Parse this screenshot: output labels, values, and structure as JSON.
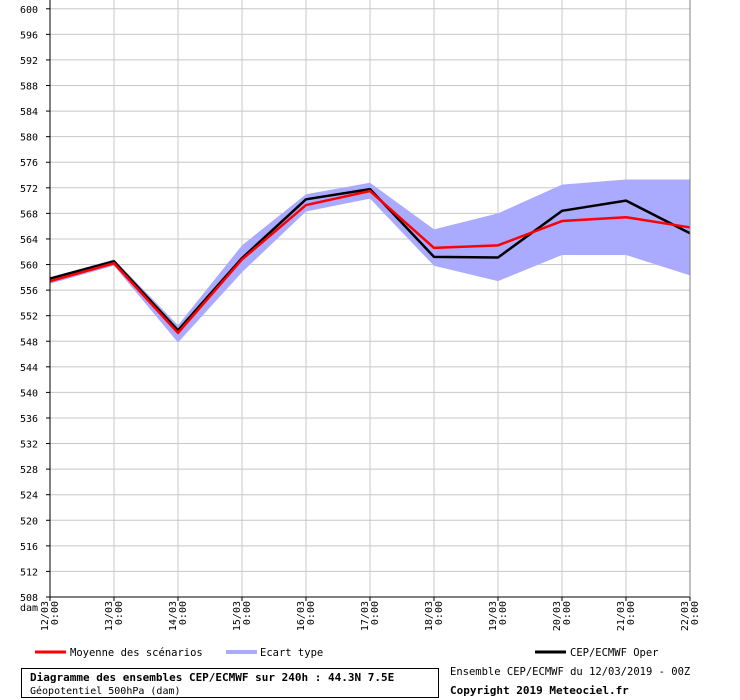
{
  "chart_data": {
    "type": "line",
    "y_unit": "dam",
    "ylim": [
      508,
      602
    ],
    "y_ticks": [
      508,
      512,
      516,
      520,
      524,
      528,
      532,
      536,
      540,
      544,
      548,
      552,
      556,
      560,
      564,
      568,
      572,
      576,
      580,
      584,
      588,
      592,
      596,
      600
    ],
    "categories": [
      "12/03 0:00",
      "13/03 0:00",
      "14/03 0:00",
      "15/03 0:00",
      "16/03 0:00",
      "17/03 0:00",
      "18/03 0:00",
      "19/03 0:00",
      "20/03 0:00",
      "21/03 0:00",
      "22/03 0:00"
    ],
    "grid": true,
    "series": [
      {
        "name": "Moyenne des scénarios",
        "color": "#ff0000",
        "values": [
          557.4,
          560.2,
          549.3,
          560.8,
          569.3,
          571.5,
          562.6,
          563.0,
          566.8,
          567.4,
          565.8
        ]
      },
      {
        "name": "CEP/ECMWF Oper",
        "color": "#000000",
        "values": [
          557.8,
          560.5,
          549.7,
          561.0,
          570.2,
          571.8,
          561.2,
          561.1,
          568.4,
          570.0,
          564.9
        ]
      }
    ],
    "band": {
      "name": "Ecart type",
      "color": "#aaaaff",
      "upper": [
        558.0,
        560.8,
        550.5,
        563.0,
        571.0,
        572.8,
        565.5,
        568.0,
        572.5,
        573.3,
        573.3
      ],
      "lower": [
        557.0,
        559.8,
        547.8,
        558.8,
        568.3,
        570.3,
        559.8,
        557.4,
        561.5,
        561.5,
        558.3
      ]
    }
  },
  "legend": {
    "mean_label": "Moyenne des scénarios",
    "band_label": "Ecart type",
    "oper_label": "CEP/ECMWF Oper"
  },
  "footer": {
    "title": "Diagramme des ensembles CEP/ECMWF sur 240h : 44.3N 7.5E",
    "subtitle": "Géopotentiel 500hPa (dam)",
    "ensemble_info": "Ensemble CEP/ECMWF du 12/03/2019 - 00Z",
    "copyright": "Copyright 2019 Meteociel.fr"
  }
}
